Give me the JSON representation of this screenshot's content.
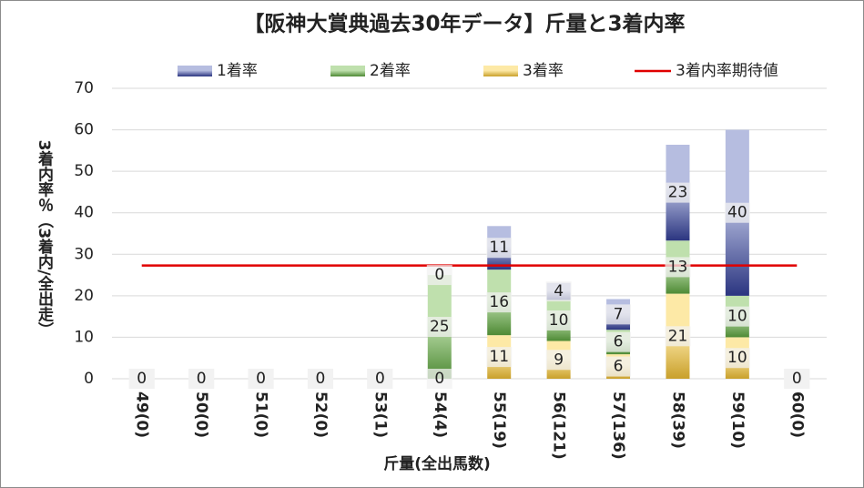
{
  "chart_data": {
    "type": "bar",
    "stacked": true,
    "title": "【阪神大賞典過去30年データ】斤量と3着内率",
    "x_label": "斤量(全出馬数)",
    "y_label": "3着内率％（3着内/全出走）",
    "categories": [
      "49(0)",
      "50(0)",
      "51(0)",
      "52(0)",
      "53(1)",
      "54(4)",
      "55(19)",
      "56(121)",
      "57(136)",
      "58(39)",
      "59(10)",
      "60(0)"
    ],
    "series": [
      {
        "name": "3着率",
        "color": "#c9a02b",
        "light": "#fde9a6",
        "values": [
          0,
          0,
          0,
          0,
          0,
          0,
          10.5,
          9.1,
          5.9,
          20.5,
          10,
          0
        ],
        "value_labels": [
          "0",
          "0",
          "0",
          "0",
          "0",
          "0",
          "11",
          "9",
          "6",
          "21",
          "10",
          "0"
        ]
      },
      {
        "name": "2着率",
        "color": "#4e8a35",
        "light": "#bfe0ad",
        "values": [
          0,
          0,
          0,
          0,
          0,
          25,
          15.8,
          9.9,
          5.9,
          12.8,
          10,
          0
        ],
        "value_labels": [
          "0",
          "0",
          "0",
          "0",
          "0",
          "25",
          "16",
          "10",
          "6",
          "13",
          "10",
          "0"
        ]
      },
      {
        "name": "1着率",
        "color": "#2b3580",
        "light": "#b6bde0",
        "values": [
          0,
          0,
          0,
          0,
          0,
          0,
          10.5,
          4.1,
          7.4,
          23.1,
          40,
          0
        ],
        "value_labels": [
          "0",
          "0",
          "0",
          "0",
          "0",
          "0",
          "11",
          "4",
          "7",
          "23",
          "40",
          "0"
        ]
      }
    ],
    "legend_order": [
      2,
      1,
      0
    ],
    "reference_line": {
      "name": "3着内率期待値",
      "value": 27.3,
      "color": "#e00000"
    },
    "ylim": [
      0,
      70
    ],
    "yticks": [
      0,
      10,
      20,
      30,
      40,
      50,
      60,
      70
    ],
    "grid": true
  }
}
